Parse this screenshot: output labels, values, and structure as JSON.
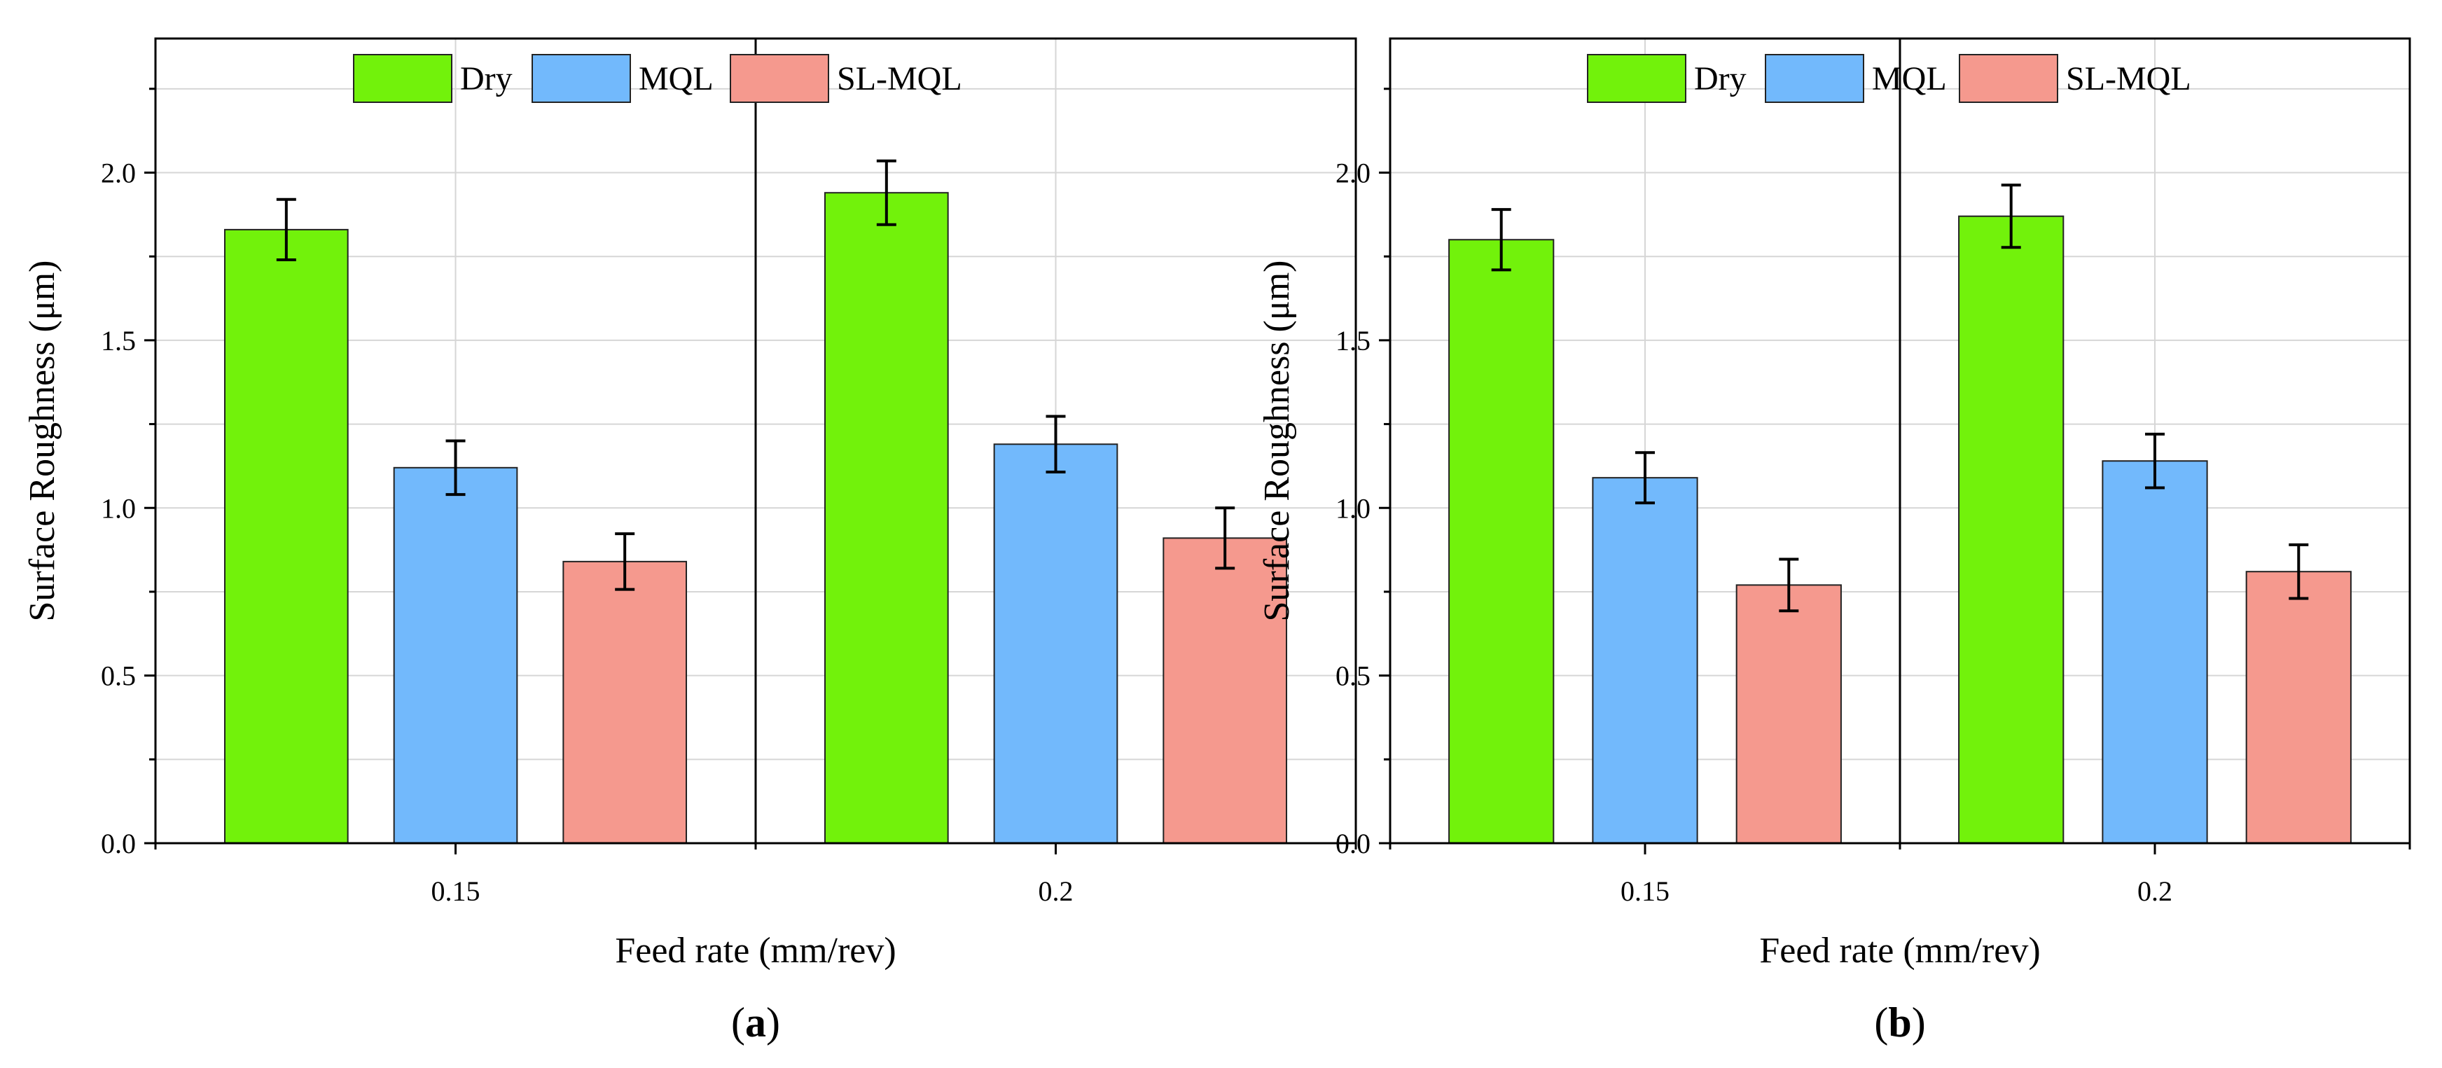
{
  "chart_data": [
    {
      "type": "bar",
      "panel_label": "a",
      "categories": [
        "0.15",
        "0.2"
      ],
      "series": [
        {
          "name": "Dry",
          "color": "#72f20b",
          "values": [
            1.83,
            1.94
          ],
          "errors": [
            0.09,
            0.095
          ]
        },
        {
          "name": "MQL",
          "color": "#72b9fc",
          "values": [
            1.12,
            1.19
          ],
          "errors": [
            0.08,
            0.083
          ]
        },
        {
          "name": "SL-MQL",
          "color": "#f5998e",
          "values": [
            0.84,
            0.91
          ],
          "errors": [
            0.083,
            0.09
          ]
        }
      ],
      "xlabel": "Feed rate (mm/rev)",
      "ylabel": "Surface Roughness (μm)",
      "ylim": [
        0,
        2.4
      ],
      "yticks": [
        "0.0",
        "0.5",
        "1.0",
        "1.5",
        "2.0"
      ],
      "grid": true,
      "legend": "top-center"
    },
    {
      "type": "bar",
      "panel_label": "b",
      "categories": [
        "0.15",
        "0.2"
      ],
      "series": [
        {
          "name": "Dry",
          "color": "#72f20b",
          "values": [
            1.8,
            1.87
          ],
          "errors": [
            0.09,
            0.093
          ]
        },
        {
          "name": "MQL",
          "color": "#72b9fc",
          "values": [
            1.09,
            1.14
          ],
          "errors": [
            0.075,
            0.08
          ]
        },
        {
          "name": "SL-MQL",
          "color": "#f5998e",
          "values": [
            0.77,
            0.81
          ],
          "errors": [
            0.077,
            0.08
          ]
        }
      ],
      "xlabel": "Feed rate (mm/rev)",
      "ylabel": "Surface Roughness (μm)",
      "ylim": [
        0,
        2.4
      ],
      "yticks": [
        "0.0",
        "0.5",
        "1.0",
        "1.5",
        "2.0"
      ],
      "grid": true,
      "legend": "top-center"
    }
  ]
}
